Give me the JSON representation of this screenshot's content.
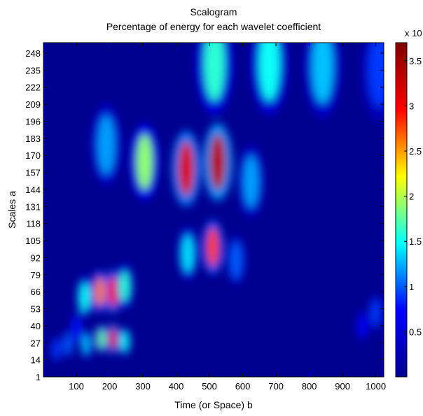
{
  "chart_data": {
    "type": "heatmap",
    "title": "Scalogram",
    "subtitle": "Percentage of energy for each wavelet coefficient",
    "xlabel": "Time (or Space) b",
    "ylabel": "Scales a",
    "xlim": [
      1,
      1024
    ],
    "ylim": [
      1,
      256
    ],
    "x_ticks": [
      100,
      200,
      300,
      400,
      500,
      600,
      700,
      800,
      900,
      1000
    ],
    "y_ticks": [
      1,
      14,
      27,
      40,
      53,
      66,
      79,
      92,
      105,
      118,
      131,
      144,
      157,
      170,
      183,
      196,
      209,
      222,
      235,
      248
    ],
    "colorbar": {
      "exponent_label": "x 10",
      "ticks": [
        0.5,
        1,
        1.5,
        2,
        2.5,
        3,
        3.5
      ],
      "tick_labels": [
        "0.5",
        "1",
        "1.5",
        "2",
        "2.5",
        "3",
        "3.5"
      ],
      "range": [
        0,
        3.7
      ],
      "colormap": [
        "#00008f",
        "#0000ff",
        "#00ffff",
        "#ffff00",
        "#ff0000",
        "#800000"
      ]
    },
    "energy_features": [
      {
        "b": 40,
        "a": 22,
        "value": 0.9
      },
      {
        "b": 75,
        "a": 26,
        "value": 1.0
      },
      {
        "b": 100,
        "a": 38,
        "value": 0.8
      },
      {
        "b": 125,
        "a": 62,
        "value": 1.5
      },
      {
        "b": 130,
        "a": 26,
        "value": 1.3
      },
      {
        "b": 170,
        "a": 66,
        "value": 2.6
      },
      {
        "b": 175,
        "a": 30,
        "value": 1.8
      },
      {
        "b": 210,
        "a": 66,
        "value": 2.9
      },
      {
        "b": 210,
        "a": 30,
        "value": 3.1
      },
      {
        "b": 245,
        "a": 70,
        "value": 1.6
      },
      {
        "b": 245,
        "a": 28,
        "value": 1.5
      },
      {
        "b": 190,
        "a": 178,
        "value": 1.2
      },
      {
        "b": 305,
        "a": 165,
        "value": 1.9
      },
      {
        "b": 430,
        "a": 160,
        "value": 3.2
      },
      {
        "b": 435,
        "a": 95,
        "value": 1.4
      },
      {
        "b": 525,
        "a": 165,
        "value": 3.4
      },
      {
        "b": 510,
        "a": 100,
        "value": 2.8
      },
      {
        "b": 625,
        "a": 150,
        "value": 1.2
      },
      {
        "b": 580,
        "a": 90,
        "value": 1.0
      },
      {
        "b": 515,
        "a": 240,
        "value": 1.6
      },
      {
        "b": 680,
        "a": 240,
        "value": 1.5
      },
      {
        "b": 840,
        "a": 238,
        "value": 1.3
      },
      {
        "b": 1010,
        "a": 235,
        "value": 0.9
      },
      {
        "b": 960,
        "a": 40,
        "value": 0.7
      },
      {
        "b": 1000,
        "a": 50,
        "value": 0.9
      }
    ]
  }
}
